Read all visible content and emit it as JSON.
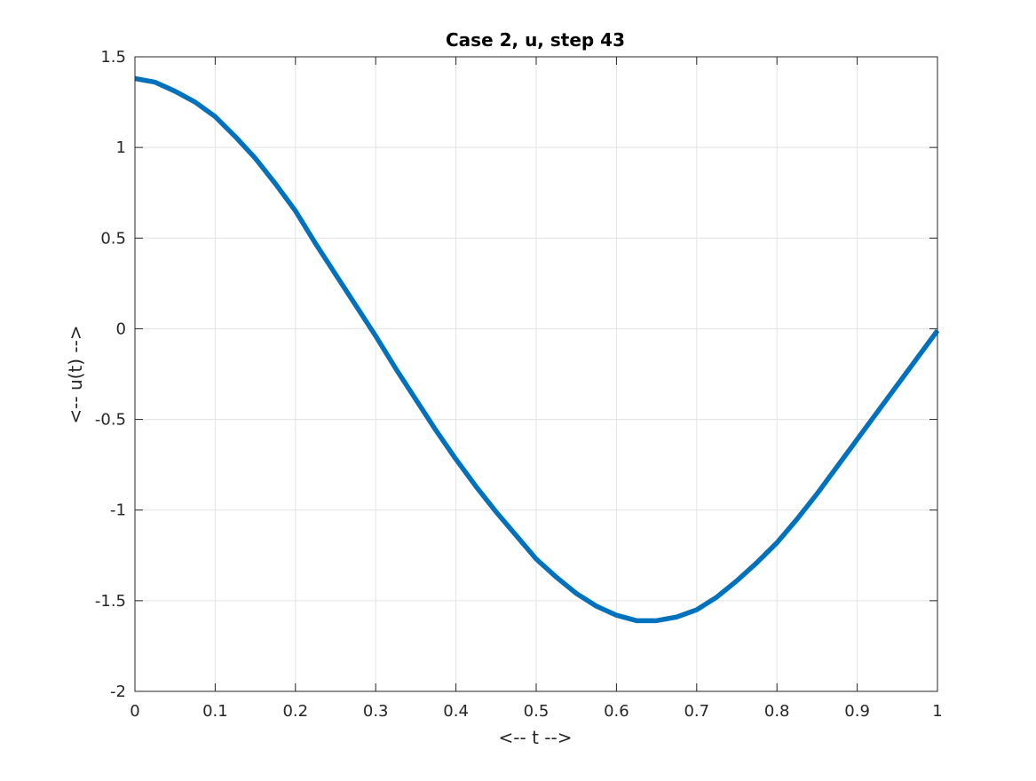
{
  "chart_data": {
    "type": "line",
    "title": "Case 2, u, step 43",
    "xlabel": "<-- t -->",
    "ylabel": "<-- u(t) -->",
    "xlim": [
      0,
      1
    ],
    "ylim": [
      -2,
      1.5
    ],
    "xticks": [
      0,
      0.1,
      0.2,
      0.3,
      0.4,
      0.5,
      0.6,
      0.7,
      0.8,
      0.9,
      1
    ],
    "xtick_labels": [
      "0",
      "0.1",
      "0.2",
      "0.3",
      "0.4",
      "0.5",
      "0.6",
      "0.7",
      "0.8",
      "0.9",
      "1"
    ],
    "yticks": [
      -2,
      -1.5,
      -1,
      -0.5,
      0,
      0.5,
      1,
      1.5
    ],
    "ytick_labels": [
      "-2",
      "-1.5",
      "-1",
      "-0.5",
      "0",
      "0.5",
      "1",
      "1.5"
    ],
    "grid": true,
    "line_color": "#0072BD",
    "series": [
      {
        "x": [
          0,
          0.025,
          0.05,
          0.075,
          0.1,
          0.125,
          0.15,
          0.175,
          0.2,
          0.225,
          0.25,
          0.275,
          0.3,
          0.325,
          0.35,
          0.375,
          0.4,
          0.425,
          0.45,
          0.475,
          0.5,
          0.525,
          0.55,
          0.575,
          0.6,
          0.625,
          0.65,
          0.675,
          0.7,
          0.725,
          0.75,
          0.775,
          0.8,
          0.825,
          0.85,
          0.875,
          0.9,
          0.925,
          0.95,
          0.975,
          1
        ],
        "y": [
          1.38,
          1.36,
          1.31,
          1.25,
          1.17,
          1.06,
          0.94,
          0.8,
          0.65,
          0.47,
          0.3,
          0.13,
          -0.04,
          -0.22,
          -0.39,
          -0.56,
          -0.72,
          -0.87,
          -1.01,
          -1.14,
          -1.27,
          -1.37,
          -1.46,
          -1.53,
          -1.58,
          -1.61,
          -1.61,
          -1.59,
          -1.55,
          -1.48,
          -1.39,
          -1.29,
          -1.18,
          -1.05,
          -0.91,
          -0.76,
          -0.61,
          -0.46,
          -0.31,
          -0.16,
          -0.01
        ]
      }
    ]
  }
}
